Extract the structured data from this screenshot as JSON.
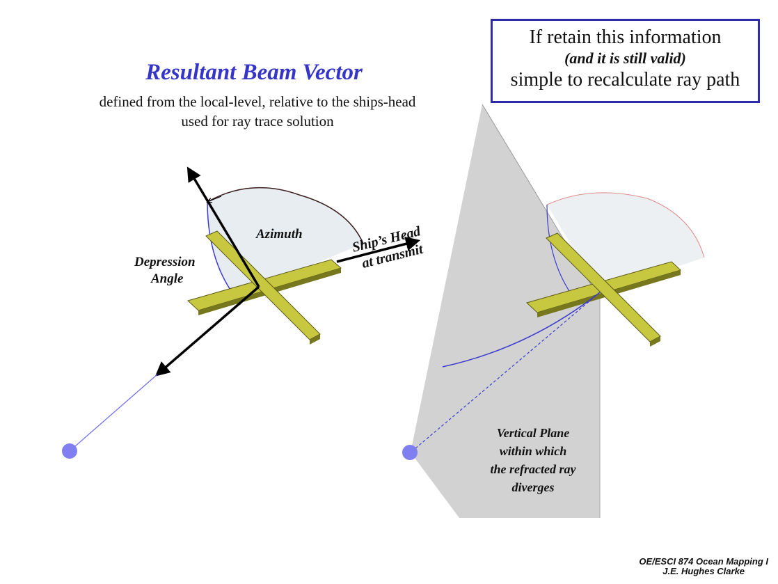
{
  "title": "Resultant Beam Vector",
  "subtitle_lines": [
    "defined from the local-level,  relative to the ships-head",
    "used for ray trace solution"
  ],
  "info_box": {
    "line1": "If retain this information",
    "line2": "(and it is still valid)",
    "line3": "simple to recalculate ray path"
  },
  "labels": {
    "azimuth": "Azimuth",
    "depression": "Depression",
    "angle": "Angle",
    "ships_head": "Ship’s Head",
    "at_transmit": "at transmit",
    "vertical_plane": [
      "Vertical Plane",
      "within which",
      "the refracted ray",
      "diverges"
    ]
  },
  "footer": {
    "course": "OE/ESCI 874 Ocean Mapping I",
    "author": "J.E. Hughes Clarke"
  },
  "colors": {
    "title": "#3535c8",
    "beam": "#6b6bf2",
    "cross": "#c8c840",
    "plane": "#d2d2d2",
    "box_border": "#2c2ca8"
  }
}
